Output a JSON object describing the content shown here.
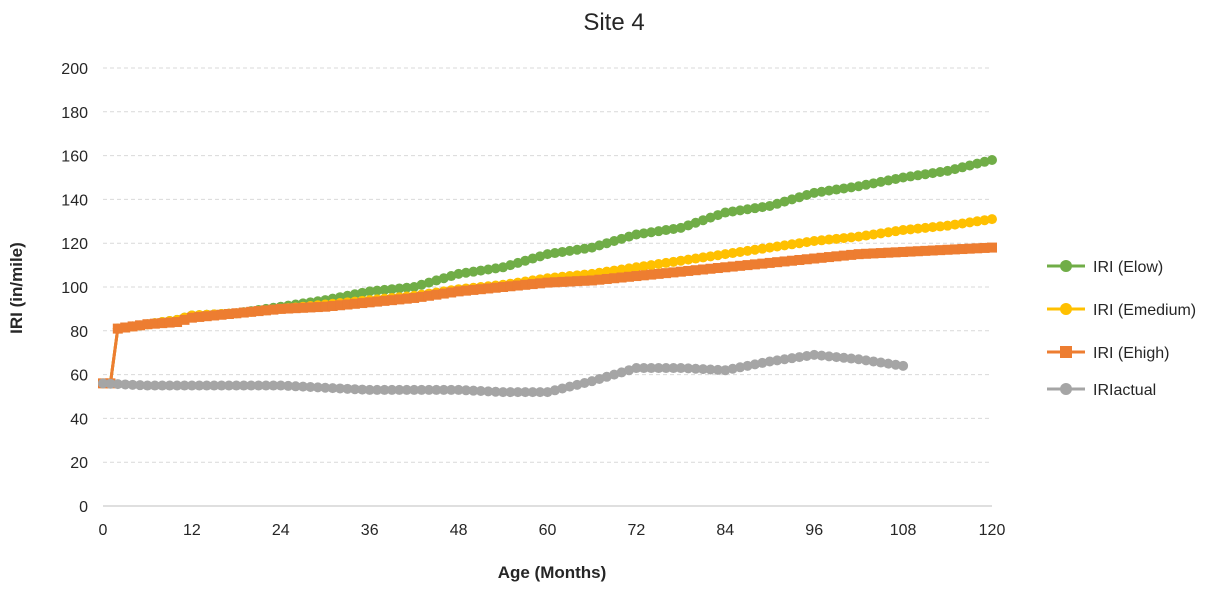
{
  "chart_data": {
    "type": "line",
    "title": "Site 4",
    "xlabel": "Age (Months)",
    "ylabel": "IRI (in/mile)",
    "xlim": [
      0,
      120
    ],
    "ylim": [
      0,
      200
    ],
    "x_ticks": [
      "0",
      "12",
      "24",
      "36",
      "48",
      "60",
      "72",
      "84",
      "96",
      "108",
      "120"
    ],
    "y_ticks": [
      "0",
      "20",
      "40",
      "60",
      "80",
      "100",
      "120",
      "140",
      "160",
      "180",
      "200"
    ],
    "grid": "horizontal dashed",
    "legend_position": "right",
    "series": [
      {
        "name": "IRI (Elow)",
        "color": "#70AD47",
        "marker": "circle",
        "points": [
          [
            0,
            56
          ],
          [
            1,
            56
          ],
          [
            2,
            81
          ],
          [
            6,
            83
          ],
          [
            10,
            85
          ],
          [
            12,
            87
          ],
          [
            18,
            88
          ],
          [
            24,
            91
          ],
          [
            30,
            94
          ],
          [
            36,
            98
          ],
          [
            42,
            100
          ],
          [
            48,
            106
          ],
          [
            54,
            109
          ],
          [
            60,
            115
          ],
          [
            66,
            118
          ],
          [
            72,
            124
          ],
          [
            78,
            127
          ],
          [
            84,
            134
          ],
          [
            90,
            137
          ],
          [
            96,
            143
          ],
          [
            102,
            146
          ],
          [
            108,
            150
          ],
          [
            114,
            153
          ],
          [
            120,
            158
          ]
        ]
      },
      {
        "name": "IRI (Emedium)",
        "color": "#FFC000",
        "marker": "circle",
        "points": [
          [
            0,
            56
          ],
          [
            1,
            56
          ],
          [
            2,
            81
          ],
          [
            6,
            83
          ],
          [
            10,
            85
          ],
          [
            12,
            87
          ],
          [
            18,
            88
          ],
          [
            24,
            90
          ],
          [
            30,
            92
          ],
          [
            36,
            94
          ],
          [
            42,
            96
          ],
          [
            48,
            99
          ],
          [
            54,
            101
          ],
          [
            60,
            104
          ],
          [
            66,
            106
          ],
          [
            72,
            109
          ],
          [
            78,
            112
          ],
          [
            84,
            115
          ],
          [
            90,
            118
          ],
          [
            96,
            121
          ],
          [
            102,
            123
          ],
          [
            108,
            126
          ],
          [
            114,
            128
          ],
          [
            120,
            131
          ]
        ]
      },
      {
        "name": "IRI (Ehigh)",
        "color": "#ED7D31",
        "marker": "square",
        "points": [
          [
            0,
            56
          ],
          [
            1,
            56
          ],
          [
            2,
            81
          ],
          [
            6,
            83
          ],
          [
            10,
            84
          ],
          [
            12,
            86
          ],
          [
            18,
            88
          ],
          [
            24,
            90
          ],
          [
            30,
            91
          ],
          [
            36,
            93
          ],
          [
            42,
            95
          ],
          [
            48,
            98
          ],
          [
            54,
            100
          ],
          [
            60,
            102
          ],
          [
            66,
            103
          ],
          [
            72,
            105
          ],
          [
            78,
            107
          ],
          [
            84,
            109
          ],
          [
            90,
            111
          ],
          [
            96,
            113
          ],
          [
            102,
            115
          ],
          [
            108,
            116
          ],
          [
            114,
            117
          ],
          [
            120,
            118
          ]
        ]
      },
      {
        "name": "IRIactual",
        "color": "#A5A5A5",
        "marker": "circle",
        "points": [
          [
            0,
            56
          ],
          [
            6,
            55
          ],
          [
            12,
            55
          ],
          [
            18,
            55
          ],
          [
            24,
            55
          ],
          [
            30,
            54
          ],
          [
            36,
            53
          ],
          [
            42,
            53
          ],
          [
            48,
            53
          ],
          [
            54,
            52
          ],
          [
            60,
            52
          ],
          [
            66,
            57
          ],
          [
            72,
            63
          ],
          [
            78,
            63
          ],
          [
            84,
            62
          ],
          [
            90,
            66
          ],
          [
            96,
            69
          ],
          [
            102,
            67
          ],
          [
            108,
            64
          ]
        ]
      }
    ]
  }
}
